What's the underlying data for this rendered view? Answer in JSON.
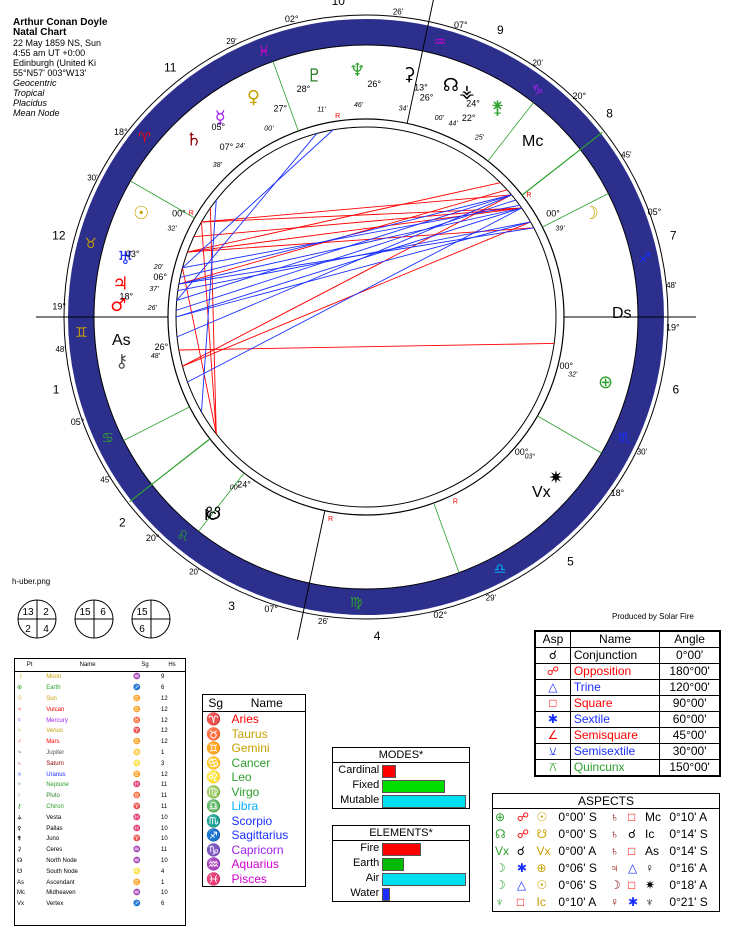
{
  "header": {
    "name": "Arthur Conan Doyle",
    "chart_type": "Natal Chart",
    "date": "22 May 1859 NS, Sun",
    "time": "4:55 am  UT +0:00",
    "place": "Edinburgh (United Ki",
    "coords": "55°N57' 003°W13'",
    "zodiac_view": "Geocentric",
    "zodiac": "Tropical",
    "houses": "Placidus",
    "node": "Mean Node"
  },
  "image_name": "h-uber.png",
  "produced_by": "Produced by Solar Fire",
  "colors": {
    "fire": "#ff0000",
    "earth": "#c8a000",
    "air": "#00b0ff",
    "water": "#2040ff",
    "red_aspect": "#ff0000",
    "blue_aspect": "#1a2fff",
    "green_line": "#2ca02c",
    "ring": "#2d2f8c"
  },
  "wheel": {
    "house_numbers": [
      "1",
      "2",
      "3",
      "4",
      "5",
      "6",
      "7",
      "8",
      "9",
      "10",
      "11",
      "12"
    ],
    "angles": {
      "asc": "As",
      "dsc": "Ds",
      "mc": "Mc",
      "ic": "Ic",
      "vertex": "Vx"
    },
    "cusp_labels": [
      {
        "deg": "19°",
        "min": "48'"
      },
      {
        "deg": "05°",
        "min": "45'"
      },
      {
        "deg": "20°",
        "min": "20'"
      },
      {
        "deg": "07°",
        "min": "26'"
      },
      {
        "deg": "02°",
        "min": "29'"
      },
      {
        "deg": "18°",
        "min": "30'"
      },
      {
        "deg": "19°",
        "min": "48'"
      },
      {
        "deg": "05°",
        "min": "45'"
      },
      {
        "deg": "20°",
        "min": "20'"
      },
      {
        "deg": "07°",
        "min": "26'"
      },
      {
        "deg": "02°",
        "min": "29'"
      },
      {
        "deg": "18°",
        "min": "30'"
      }
    ],
    "planet_labels": [
      {
        "glyph": "♆",
        "deg": "26°",
        "min": "46'",
        "color": "#2ca02c"
      },
      {
        "glyph": "♇",
        "deg": "28°",
        "min": "11'",
        "color": "#2a7d2a"
      },
      {
        "glyph": "⚳",
        "deg": "13°",
        "min": "34'",
        "color": "#000"
      },
      {
        "glyph": "☊",
        "deg": "26°",
        "min": "00'",
        "color": "#000"
      },
      {
        "glyph": "⚶",
        "deg": "24°",
        "min": "44'",
        "color": "#000"
      },
      {
        "glyph": "⚵",
        "deg": "22°",
        "min": "25'",
        "color": "#2ca02c"
      },
      {
        "glyph": "♀",
        "deg": "27°",
        "min": "00'",
        "color": "#c8a000"
      },
      {
        "glyph": "☿",
        "deg": "05°",
        "min": "24'",
        "color": "#a020f0"
      },
      {
        "glyph": "♄",
        "deg": "07°",
        "min": "38'",
        "color": "#8b0000"
      },
      {
        "glyph": "☽",
        "deg": "00°",
        "min": "39'",
        "color": "#c8a000"
      },
      {
        "glyph": "☉",
        "deg": "00°",
        "min": "32'",
        "color": "#c8a000"
      },
      {
        "glyph": "♅",
        "deg": "03°",
        "min": "20'",
        "color": "#1a2fff"
      },
      {
        "glyph": "♃",
        "deg": "06°",
        "min": "37'",
        "color": "#ff0000"
      },
      {
        "glyph": "♂",
        "deg": "18°",
        "min": "26'",
        "color": "#ff0000"
      },
      {
        "glyph": "⚷",
        "deg": "26°",
        "min": "48'",
        "color": "#555"
      },
      {
        "glyph": "⊕",
        "deg": "00°",
        "min": "32'",
        "color": "#2ca02c"
      },
      {
        "glyph": "☋",
        "deg": "24°",
        "min": "00'",
        "color": "#000"
      },
      {
        "glyph": "✷",
        "deg": "00°",
        "min": "03°",
        "color": "#000"
      }
    ],
    "retro": "R"
  },
  "house_boxes": [
    {
      "a": "13",
      "b": "2",
      "c": "2",
      "d": "4"
    },
    {
      "a": "15",
      "b": "6",
      "c": "",
      "d": ""
    },
    {
      "a": "15",
      "b": "",
      "c": "6",
      "d": ""
    }
  ],
  "legend": {
    "headers": [
      "Pt",
      "Name",
      "Sg",
      "Hs"
    ],
    "rows": [
      {
        "pt": "☽",
        "name": "Moon",
        "sg": "♒",
        "hs": "9",
        "c": "#c8a000"
      },
      {
        "pt": "⊕",
        "name": "Earth",
        "sg": "♐",
        "hs": "6",
        "c": "#2ca02c"
      },
      {
        "pt": "☉",
        "name": "Sun",
        "sg": "♊",
        "hs": "12",
        "c": "#c8a000"
      },
      {
        "pt": "♃",
        "name": "Vulcan",
        "sg": "♊",
        "hs": "12",
        "c": "#ff0000"
      },
      {
        "pt": "☿",
        "name": "Mercury",
        "sg": "♉",
        "hs": "12",
        "c": "#a020f0"
      },
      {
        "pt": "♀",
        "name": "Venus",
        "sg": "♈",
        "hs": "12",
        "c": "#c8a000"
      },
      {
        "pt": "♂",
        "name": "Mars",
        "sg": "♊",
        "hs": "12",
        "c": "#ff0000"
      },
      {
        "pt": "♃",
        "name": "Jupiter",
        "sg": "♋",
        "hs": "1",
        "c": "#555"
      },
      {
        "pt": "♄",
        "name": "Saturn",
        "sg": "♌",
        "hs": "3",
        "c": "#8b0000"
      },
      {
        "pt": "♅",
        "name": "Uranus",
        "sg": "♊",
        "hs": "12",
        "c": "#1a2fff"
      },
      {
        "pt": "♆",
        "name": "Neptune",
        "sg": "♓",
        "hs": "11",
        "c": "#2ca02c"
      },
      {
        "pt": "♇",
        "name": "Pluto",
        "sg": "♉",
        "hs": "11",
        "c": "#2a7d2a"
      },
      {
        "pt": "⚷",
        "name": "Chiron",
        "sg": "♈",
        "hs": "11",
        "c": "#2ca02c"
      },
      {
        "pt": "⚶",
        "name": "Vesta",
        "sg": "♓",
        "hs": "10",
        "c": "#000"
      },
      {
        "pt": "⚴",
        "name": "Pallas",
        "sg": "♓",
        "hs": "10",
        "c": "#000"
      },
      {
        "pt": "⚵",
        "name": "Juno",
        "sg": "♈",
        "hs": "10",
        "c": "#000"
      },
      {
        "pt": "⚳",
        "name": "Ceres",
        "sg": "♒",
        "hs": "11",
        "c": "#000"
      },
      {
        "pt": "☊",
        "name": "North Node",
        "sg": "♒",
        "hs": "10",
        "c": "#000"
      },
      {
        "pt": "☋",
        "name": "South Node",
        "sg": "♌",
        "hs": "4",
        "c": "#000"
      },
      {
        "pt": "As",
        "name": "Ascendant",
        "sg": "♊",
        "hs": "1",
        "c": "#000"
      },
      {
        "pt": "Mc",
        "name": "Midheaven",
        "sg": "♒",
        "hs": "10",
        "c": "#000"
      },
      {
        "pt": "Vx",
        "name": "Vertex",
        "sg": "♐",
        "hs": "6",
        "c": "#000"
      }
    ]
  },
  "signs": {
    "headers": [
      "Sg",
      "Name"
    ],
    "rows": [
      {
        "g": "♈",
        "n": "Aries",
        "c": "#ff0000"
      },
      {
        "g": "♉",
        "n": "Taurus",
        "c": "#c8a000"
      },
      {
        "g": "♊",
        "n": "Gemini",
        "c": "#c8a000"
      },
      {
        "g": "♋",
        "n": "Cancer",
        "c": "#2ca02c"
      },
      {
        "g": "♌",
        "n": "Leo",
        "c": "#2ca02c"
      },
      {
        "g": "♍",
        "n": "Virgo",
        "c": "#2ca02c"
      },
      {
        "g": "♎",
        "n": "Libra",
        "c": "#00b0ff"
      },
      {
        "g": "♏",
        "n": "Scorpio",
        "c": "#1a2fff"
      },
      {
        "g": "♐",
        "n": "Sagittarius",
        "c": "#1a2fff"
      },
      {
        "g": "♑",
        "n": "Capricorn",
        "c": "#a020f0"
      },
      {
        "g": "♒",
        "n": "Aquarius",
        "c": "#d000d0"
      },
      {
        "g": "♓",
        "n": "Pisces",
        "c": "#d000d0"
      }
    ]
  },
  "modes": {
    "title": "MODES*",
    "rows": [
      {
        "label": "Cardinal",
        "value": 0.15,
        "color": "#ff0000"
      },
      {
        "label": "Fixed",
        "value": 0.75,
        "color": "#00dd00"
      },
      {
        "label": "Mutable",
        "value": 1.0,
        "color": "#00e0f0"
      }
    ]
  },
  "elements": {
    "title": "ELEMENTS*",
    "rows": [
      {
        "label": "Fire",
        "value": 0.45,
        "color": "#ff0000"
      },
      {
        "label": "Earth",
        "value": 0.25,
        "color": "#00bb00"
      },
      {
        "label": "Air",
        "value": 1.0,
        "color": "#00e0f0"
      },
      {
        "label": "Water",
        "value": 0.07,
        "color": "#1a2fff"
      }
    ]
  },
  "aspect_legend": {
    "headers": [
      "Asp",
      "Name",
      "Angle"
    ],
    "rows": [
      {
        "g": "☌",
        "n": "Conjunction",
        "a": "0°00'",
        "c": "#000"
      },
      {
        "g": "☍",
        "n": "Opposition",
        "a": "180°00'",
        "c": "#ff0000"
      },
      {
        "g": "△",
        "n": "Trine",
        "a": "120°00'",
        "c": "#1a2fff"
      },
      {
        "g": "□",
        "n": "Square",
        "a": "90°00'",
        "c": "#ff0000"
      },
      {
        "g": "✱",
        "n": "Sextile",
        "a": "60°00'",
        "c": "#1a2fff"
      },
      {
        "g": "∠",
        "n": "Semisquare",
        "a": "45°00'",
        "c": "#ff0000"
      },
      {
        "g": "⚺",
        "n": "Semisextile",
        "a": "30°00'",
        "c": "#1a2fff"
      },
      {
        "g": "⚻",
        "n": "Quincunx",
        "a": "150°00'",
        "c": "#2ca02c"
      }
    ]
  },
  "aspects": {
    "title": "ASPECTS",
    "rows": [
      {
        "p1": "⊕",
        "asp": "☍",
        "p2": "☉",
        "orb": "0°00' S",
        "q1": "♄",
        "asp2": "□",
        "q2": "Mc",
        "orb2": "0°10' A"
      },
      {
        "p1": "☊",
        "asp": "☍",
        "p2": "☋",
        "orb": "0°00' S",
        "q1": "♄",
        "asp2": "☌",
        "q2": "Ic",
        "orb2": "0°14' S"
      },
      {
        "p1": "Vx",
        "asp": "☌",
        "p2": "Vx",
        "orb": "0°00' A",
        "q1": "♄",
        "asp2": "□",
        "q2": "As",
        "orb2": "0°14' S"
      },
      {
        "p1": "☽",
        "asp": "✱",
        "p2": "⊕",
        "orb": "0°06' S",
        "q1": "♃",
        "asp2": "△",
        "q2": "♀",
        "orb2": "0°16' A"
      },
      {
        "p1": "☽",
        "asp": "△",
        "p2": "☉",
        "orb": "0°06' S",
        "q1": "☽",
        "asp2": "□",
        "q2": "✷",
        "orb2": "0°18' A"
      },
      {
        "p1": "♆",
        "asp": "□",
        "p2": "Ic",
        "orb": "0°10' A",
        "q1": "♀",
        "asp2": "✱",
        "q2": "♆",
        "orb2": "0°21' S"
      }
    ]
  }
}
